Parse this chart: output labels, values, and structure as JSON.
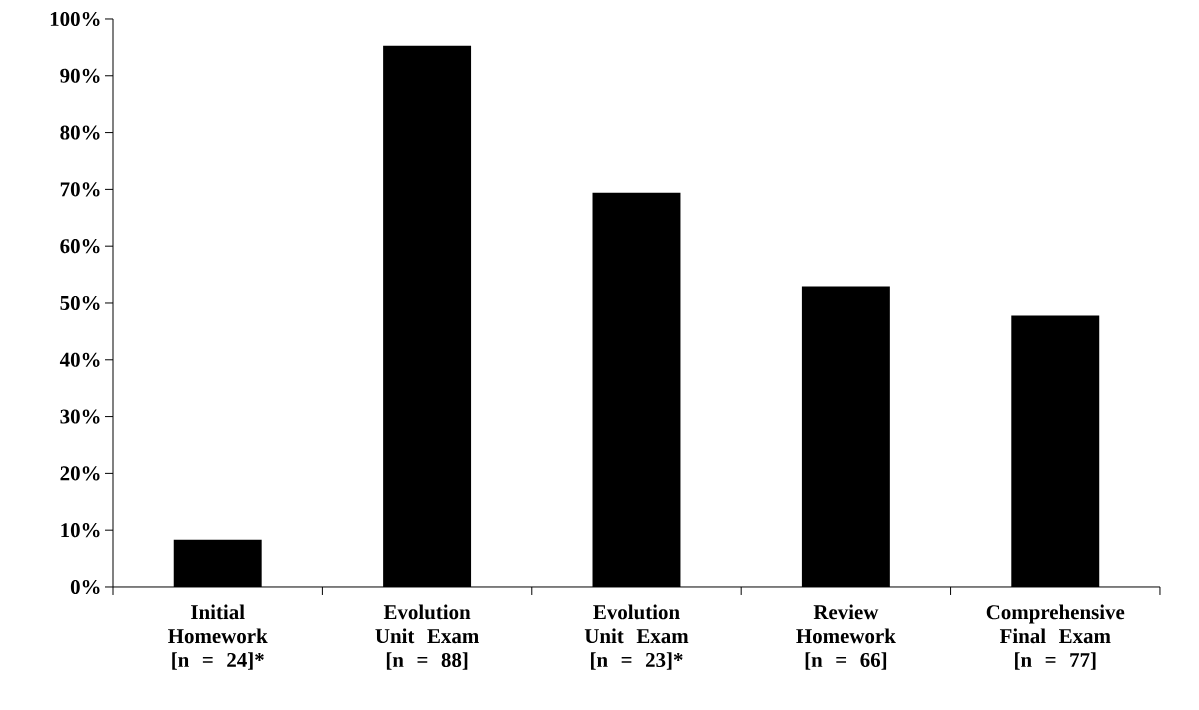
{
  "chart_data": {
    "type": "bar",
    "categories": [
      "Initial Homework [n = 24]*",
      "Evolution Unit Exam [n = 88]",
      "Evolution Unit Exam [n = 23]*",
      "Review Homework [n = 66]",
      "Comprehensive Final Exam [n = 77]"
    ],
    "values": [
      8.3,
      95.3,
      69.4,
      52.9,
      47.8
    ],
    "color": "#000000",
    "ylim": [
      0,
      100
    ],
    "yticks": [
      {
        "value": 0,
        "label": "0%"
      },
      {
        "value": 10,
        "label": "10%"
      },
      {
        "value": 20,
        "label": "20%"
      },
      {
        "value": 30,
        "label": "30%"
      },
      {
        "value": 40,
        "label": "40%"
      },
      {
        "value": 50,
        "label": "50%"
      },
      {
        "value": 60,
        "label": "60%"
      },
      {
        "value": 70,
        "label": "70%"
      },
      {
        "value": 80,
        "label": "80%"
      },
      {
        "value": 90,
        "label": "90%"
      },
      {
        "value": 100,
        "label": "100%"
      }
    ],
    "grid": false
  }
}
